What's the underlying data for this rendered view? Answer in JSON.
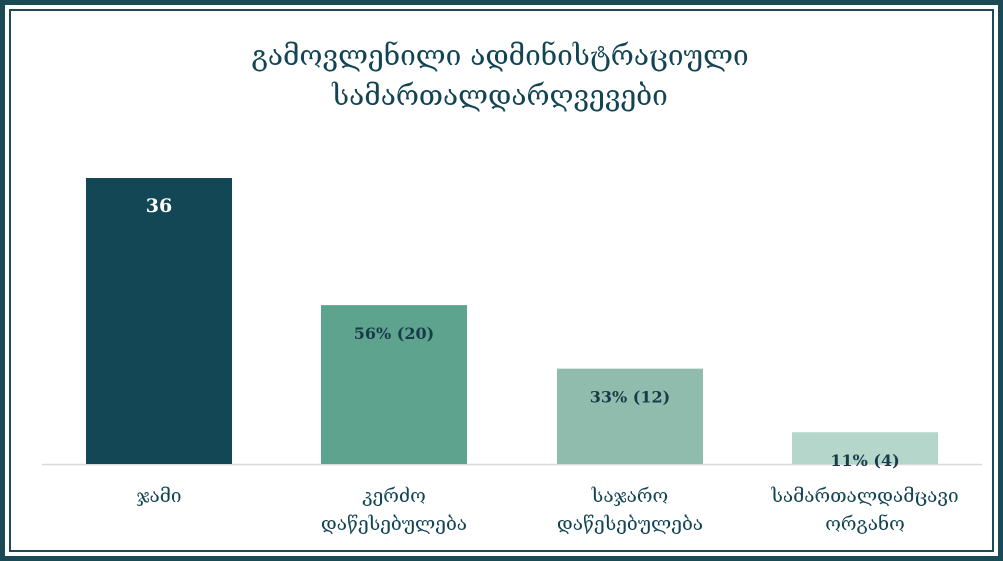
{
  "chart_data": {
    "type": "bar",
    "title_lines": [
      "გამოვლენილი ადმინისტრაციული",
      "სამართალდარღვევები"
    ],
    "categories": [
      [
        "ჯამი"
      ],
      [
        "კერძო",
        "დაწესებულება"
      ],
      [
        "საჯარო",
        "დაწესებულება"
      ],
      [
        "სამართალდამცავი",
        "ორგანო"
      ]
    ],
    "values": [
      36,
      20,
      12,
      4
    ],
    "data_labels": [
      "36",
      "56% (20)",
      "33% (12)",
      "11% (4)"
    ],
    "colors": [
      "#134755",
      "#5ea38e",
      "#8fbcad",
      "#b5d6cb"
    ],
    "label_colors": [
      "#ffffff",
      "#173b48",
      "#173b48",
      "#173b48"
    ],
    "ylim": [
      0,
      36
    ],
    "grid": false,
    "legend": "none"
  }
}
